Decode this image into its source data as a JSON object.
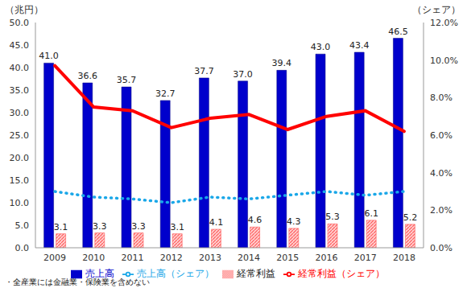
{
  "chart_data": {
    "type": "bar",
    "y_label": "（兆円）",
    "y2_label": "（シェア）",
    "categories": [
      "2009",
      "2010",
      "2011",
      "2012",
      "2013",
      "2014",
      "2015",
      "2016",
      "2017",
      "2018"
    ],
    "series": [
      {
        "name": "売上高",
        "type": "bar",
        "color": "#0000CC",
        "data_labels": true,
        "values": [
          41.0,
          36.6,
          35.7,
          32.7,
          37.7,
          37.0,
          39.4,
          43.0,
          43.4,
          46.5
        ],
        "value_labels": [
          "41.0",
          "36.6",
          "35.7",
          "32.7",
          "37.7",
          "37.0",
          "39.4",
          "43.0",
          "43.4",
          "46.5"
        ]
      },
      {
        "name": "経常利益",
        "type": "bar",
        "color": "#FF5B5B",
        "data_labels": true,
        "values": [
          3.1,
          3.3,
          3.3,
          3.1,
          4.1,
          4.6,
          4.3,
          5.3,
          6.1,
          5.2
        ]
      },
      {
        "name": "売上高（シェア）",
        "type": "line",
        "axis": "y2",
        "color": "#1AA7E8",
        "line_style": "dotted",
        "data_labels": false,
        "values": [
          3.0,
          2.7,
          2.6,
          2.4,
          2.7,
          2.6,
          2.8,
          3.0,
          2.8,
          3.0
        ]
      },
      {
        "name": "経常利益（シェア）",
        "type": "line",
        "axis": "y2",
        "color": "#FF0000",
        "line_style": "solid",
        "data_labels": false,
        "values": [
          9.7,
          7.5,
          7.3,
          6.4,
          6.9,
          7.1,
          6.3,
          7.0,
          7.3,
          6.2
        ]
      }
    ],
    "ylim": [
      0,
      50
    ],
    "yticks": [
      {
        "value": 0,
        "label": "0.0"
      },
      {
        "value": 5,
        "label": "5.0"
      },
      {
        "value": 10,
        "label": "10.0"
      },
      {
        "value": 15,
        "label": "15.0"
      },
      {
        "value": 20,
        "label": "20.0"
      },
      {
        "value": 25,
        "label": "25.0"
      },
      {
        "value": 30,
        "label": "30.0"
      },
      {
        "value": 35,
        "label": "35.0"
      },
      {
        "value": 40,
        "label": "40.0"
      },
      {
        "value": 45,
        "label": "45.0"
      },
      {
        "value": 50,
        "label": "50.0"
      }
    ],
    "y2lim": [
      0,
      12
    ],
    "y2ticks": [
      {
        "value": 0,
        "label": "0.0%"
      },
      {
        "value": 2,
        "label": "2.0%"
      },
      {
        "value": 4,
        "label": "4.0%"
      },
      {
        "value": 6,
        "label": "6.0%"
      },
      {
        "value": 8,
        "label": "8.0%"
      },
      {
        "value": 10,
        "label": "10.0%"
      },
      {
        "value": 12,
        "label": "12.0%"
      }
    ],
    "grid": false,
    "legend": "bottom",
    "annotations": [
      "・全産業には金融業・保険業を含めない"
    ]
  }
}
